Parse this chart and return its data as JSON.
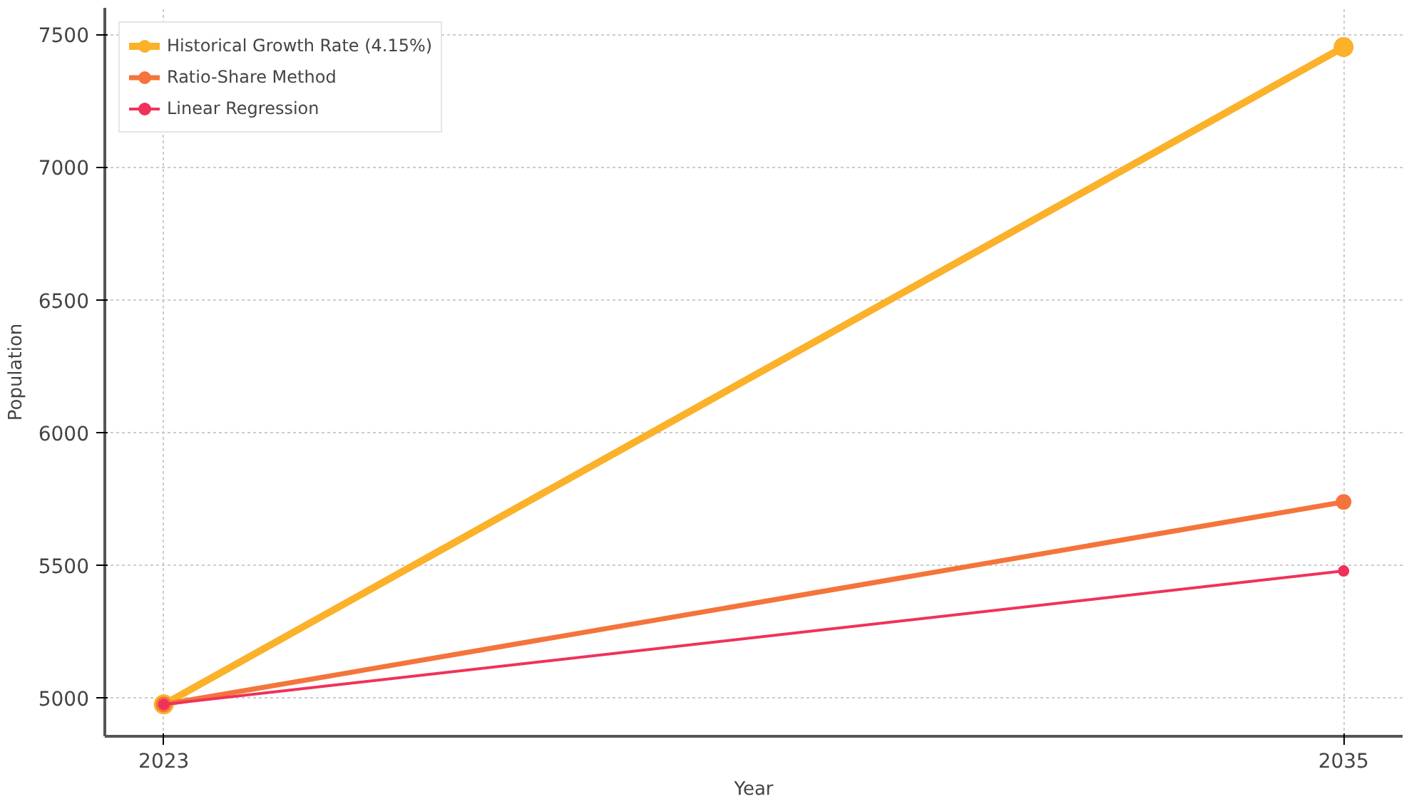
{
  "chart_data": {
    "type": "line",
    "xlabel": "Year",
    "ylabel": "Population",
    "x": [
      2023,
      2035
    ],
    "series": [
      {
        "name": "Historical Growth Rate (4.15%)",
        "color": "#fbb12a",
        "values": [
          4975,
          7452
        ]
      },
      {
        "name": "Ratio-Share Method",
        "color": "#f4743b",
        "values": [
          4975,
          5738
        ]
      },
      {
        "name": "Linear Regression",
        "color": "#f0325a",
        "values": [
          4975,
          5478
        ]
      }
    ],
    "xlim": [
      2022.4,
      2035.6
    ],
    "ylim": [
      4855,
      7600
    ],
    "xticks": [
      2023,
      2035
    ],
    "yticks": [
      5000,
      5500,
      6000,
      6500,
      7000,
      7500
    ],
    "grid": true,
    "legend": "top left",
    "marker": "circle",
    "line_style": "solid"
  }
}
